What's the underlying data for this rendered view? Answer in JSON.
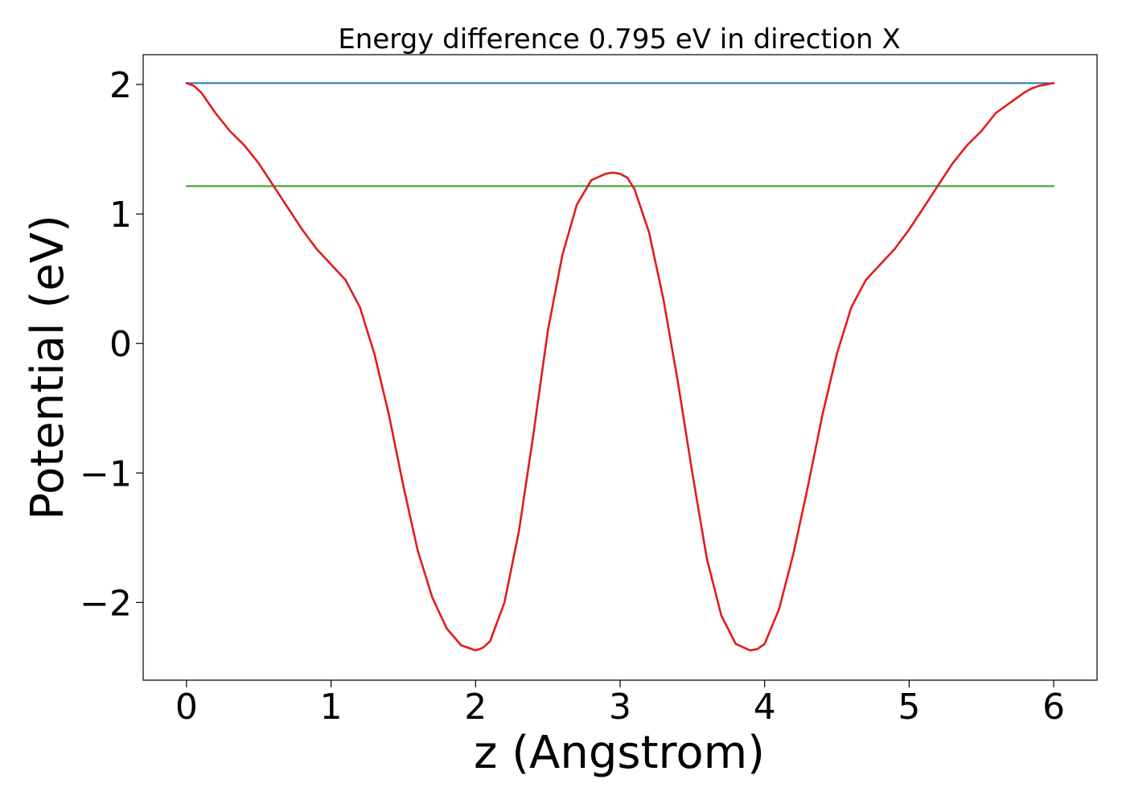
{
  "chart_data": {
    "type": "line",
    "title": "Energy difference 0.795 eV in direction X",
    "xlabel": "z (Angstrom)",
    "ylabel": "Potential (eV)",
    "xlim": [
      -0.3,
      6.3
    ],
    "ylim": [
      -2.6,
      2.23
    ],
    "grid": false,
    "x_ticks": [
      0,
      1,
      2,
      3,
      4,
      5,
      6
    ],
    "x_tick_labels": [
      "0",
      "1",
      "2",
      "3",
      "4",
      "5",
      "6"
    ],
    "y_ticks": [
      -2,
      -1,
      0,
      1,
      2
    ],
    "y_tick_labels": [
      "−2",
      "−1",
      "0",
      "1",
      "2"
    ],
    "series": [
      {
        "color": "#1f77b4",
        "x": [
          0,
          6
        ],
        "y": [
          2.01,
          2.01
        ]
      },
      {
        "color": "#2ca02c",
        "x": [
          0,
          6
        ],
        "y": [
          1.215,
          1.215
        ]
      },
      {
        "color": "#e41a1c",
        "x": [
          0,
          0.05,
          0.1,
          0.15,
          0.2,
          0.3,
          0.4,
          0.5,
          0.6,
          0.7,
          0.8,
          0.9,
          1.0,
          1.1,
          1.2,
          1.3,
          1.4,
          1.5,
          1.6,
          1.7,
          1.8,
          1.9,
          2.0,
          2.05,
          2.1,
          2.2,
          2.3,
          2.4,
          2.5,
          2.6,
          2.7,
          2.8,
          2.9,
          2.95,
          3.0,
          3.05,
          3.1,
          3.2,
          3.3,
          3.4,
          3.5,
          3.6,
          3.7,
          3.8,
          3.9,
          3.95,
          4.0,
          4.1,
          4.2,
          4.3,
          4.4,
          4.5,
          4.6,
          4.7,
          4.8,
          4.9,
          5.0,
          5.1,
          5.2,
          5.3,
          5.4,
          5.5,
          5.6,
          5.7,
          5.8,
          5.85,
          5.9,
          5.95,
          6.0
        ],
        "y": [
          2.01,
          1.99,
          1.94,
          1.86,
          1.78,
          1.64,
          1.53,
          1.39,
          1.22,
          1.05,
          0.88,
          0.73,
          0.61,
          0.49,
          0.28,
          -0.08,
          -0.55,
          -1.1,
          -1.6,
          -1.96,
          -2.2,
          -2.33,
          -2.37,
          -2.35,
          -2.3,
          -2.0,
          -1.45,
          -0.7,
          0.1,
          0.68,
          1.07,
          1.26,
          1.31,
          1.32,
          1.31,
          1.28,
          1.19,
          0.86,
          0.34,
          -0.3,
          -1.0,
          -1.66,
          -2.1,
          -2.32,
          -2.37,
          -2.36,
          -2.32,
          -2.05,
          -1.62,
          -1.1,
          -0.55,
          -0.08,
          0.28,
          0.49,
          0.61,
          0.73,
          0.88,
          1.05,
          1.22,
          1.39,
          1.53,
          1.64,
          1.78,
          1.86,
          1.94,
          1.97,
          1.99,
          2.0,
          2.01
        ]
      }
    ]
  }
}
